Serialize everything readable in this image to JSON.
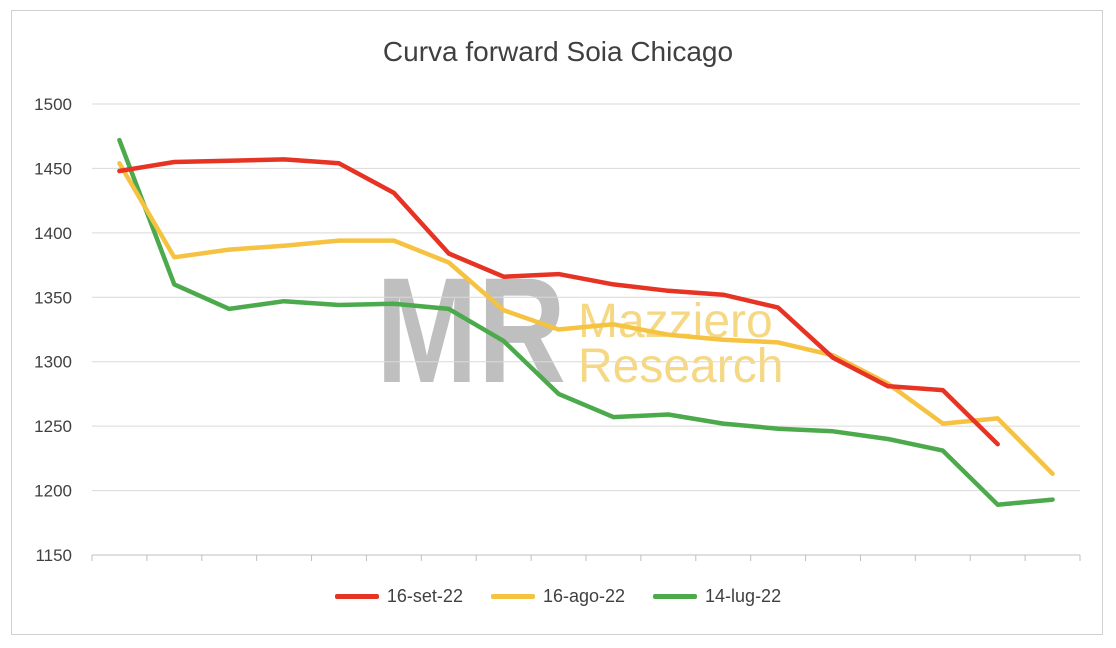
{
  "chart_data": {
    "type": "line",
    "title": "Curva forward Soia Chicago",
    "xlabel": "",
    "ylabel": "",
    "ylim": [
      1150,
      1500
    ],
    "yticks": [
      1150,
      1200,
      1250,
      1300,
      1350,
      1400,
      1450,
      1500
    ],
    "x_count": 18,
    "grid": true,
    "legend_position": "bottom",
    "watermark": {
      "line1": "Mazziero",
      "line2": "Research",
      "logo_text": "MR"
    },
    "series": [
      {
        "name": "16-set-22",
        "color": "#e63323",
        "values": [
          1448,
          1455,
          1456,
          1457,
          1454,
          1431,
          1384,
          1366,
          1368,
          1360,
          1355,
          1352,
          1342,
          1303,
          1281,
          1278,
          1236
        ]
      },
      {
        "name": "16-ago-22",
        "color": "#f5c242",
        "values": [
          1454,
          1381,
          1387,
          1390,
          1394,
          1394,
          1377,
          1340,
          1325,
          1329,
          1321,
          1317,
          1315,
          1305,
          1283,
          1252,
          1256,
          1213
        ]
      },
      {
        "name": "14-lug-22",
        "color": "#4caa4d",
        "values": [
          1472,
          1360,
          1341,
          1347,
          1344,
          1345,
          1341,
          1316,
          1275,
          1257,
          1259,
          1252,
          1248,
          1246,
          1240,
          1231,
          1189,
          1193
        ]
      }
    ]
  }
}
